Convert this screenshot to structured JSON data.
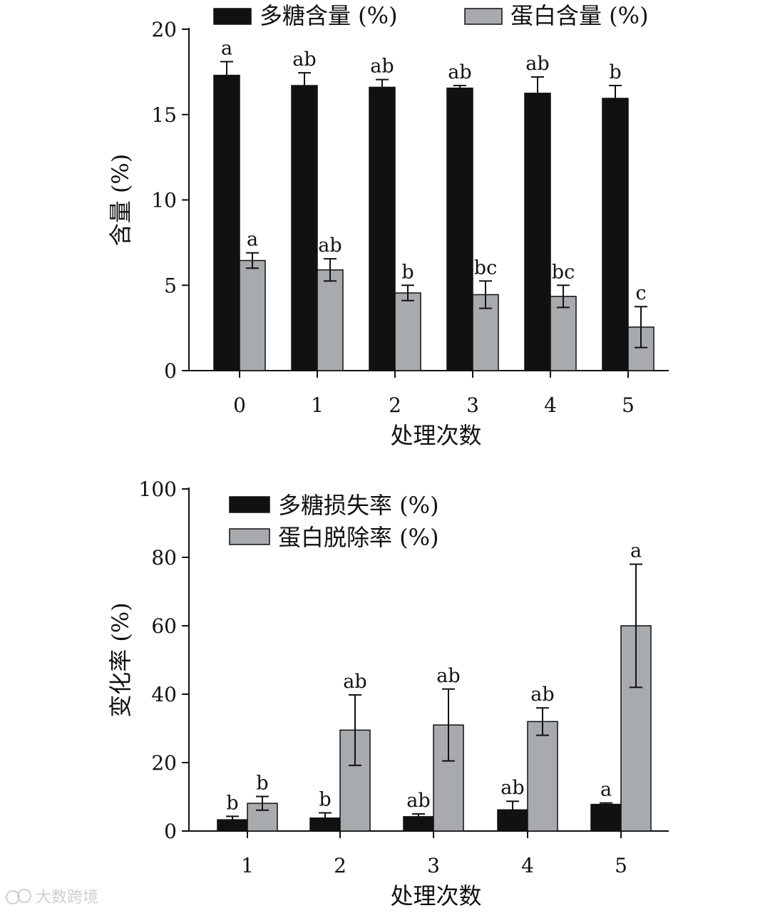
{
  "colors": {
    "series1": "#111111",
    "series2": "#a7abae",
    "axis": "#111111"
  },
  "watermark": {
    "icon": "chat-bubble-icon",
    "text": "大数跨境"
  },
  "chart_data": [
    {
      "type": "bar",
      "categories": [
        "0",
        "1",
        "2",
        "3",
        "4",
        "5"
      ],
      "ylabel": "含量 (%)",
      "xlabel": "处理次数",
      "ylim": [
        0,
        20
      ],
      "yticks": [
        "0",
        "5",
        "10",
        "15",
        "20"
      ],
      "ytick_values": [
        0,
        5,
        10,
        15,
        20
      ],
      "legend_position": "top",
      "series": [
        {
          "name": "多糖含量 (%)",
          "values": [
            17.3,
            16.7,
            16.6,
            16.55,
            16.25,
            15.95
          ],
          "errors": [
            0.8,
            0.75,
            0.45,
            0.15,
            0.95,
            0.75
          ],
          "labels": [
            "a",
            "ab",
            "ab",
            "ab",
            "ab",
            "b"
          ]
        },
        {
          "name": "蛋白含量 (%)",
          "values": [
            6.45,
            5.9,
            4.55,
            4.45,
            4.35,
            2.55
          ],
          "errors": [
            0.45,
            0.65,
            0.45,
            0.8,
            0.65,
            1.2
          ],
          "labels": [
            "a",
            "ab",
            "b",
            "bc",
            "bc",
            "c"
          ]
        }
      ]
    },
    {
      "type": "bar",
      "categories": [
        "1",
        "2",
        "3",
        "4",
        "5"
      ],
      "ylabel": "变化率 (%)",
      "xlabel": "处理次数",
      "ylim": [
        0,
        100
      ],
      "yticks": [
        "0",
        "20",
        "40",
        "60",
        "80",
        "100"
      ],
      "ytick_values": [
        0,
        20,
        40,
        60,
        80,
        100
      ],
      "legend_position": "top-left",
      "series": [
        {
          "name": "多糖损失率 (%)",
          "values": [
            3.3,
            3.8,
            4.2,
            6.2,
            7.8
          ],
          "errors": [
            1.0,
            1.5,
            0.8,
            2.5,
            0.4
          ],
          "labels": [
            "b",
            "b",
            "ab",
            "ab",
            "a"
          ]
        },
        {
          "name": "蛋白脱除率 (%)",
          "values": [
            8.1,
            29.5,
            31.0,
            32.0,
            60.0
          ],
          "errors": [
            2.0,
            10.3,
            10.5,
            4.0,
            18.0
          ],
          "labels": [
            "b",
            "ab",
            "ab",
            "ab",
            "a"
          ]
        }
      ]
    }
  ]
}
